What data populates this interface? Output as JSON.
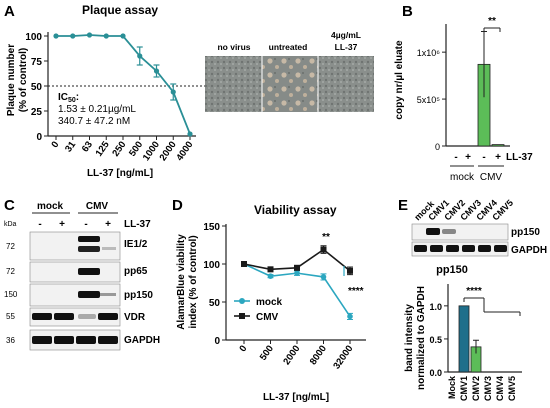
{
  "panel_letters": {
    "a": "A",
    "b": "B",
    "c": "C",
    "d": "D",
    "e": "E"
  },
  "panelA": {
    "title": "Plaque assay",
    "ylabel_line1": "Plaque number",
    "ylabel_line2": "(% of control)",
    "xlabel": "LL-37 [ng/mL]",
    "ic50_label": "IC50:",
    "ic50_line1": "1.53 ± 0.21µg/mL",
    "ic50_line2": "340.7 ± 47.2 nM",
    "image_labels": [
      "no virus",
      "untreated",
      "4µg/mL LL-37"
    ],
    "color": "#2a8f96"
  },
  "panelB": {
    "ylabel": "copy nr/µl eluate",
    "significance": "**",
    "ll37_label": "LL-37",
    "group_labels": [
      "mock",
      "CMV"
    ],
    "treatment_marks": [
      "-",
      "+",
      "-",
      "+"
    ],
    "color": "#5cbd58"
  },
  "panelC": {
    "kda_label": "kDa",
    "group_labels": [
      "mock",
      "CMV"
    ],
    "ll37_label": "LL-37",
    "treatment_marks": [
      "-",
      "+",
      "-",
      "+"
    ],
    "markers": [
      "72",
      "72",
      "150",
      "55",
      "36"
    ],
    "bands": [
      "IE1/2",
      "pp65",
      "pp150",
      "VDR",
      "GAPDH"
    ]
  },
  "panelD": {
    "title": "Viability assay",
    "ylabel_line1": "AlamarBlue viability",
    "ylabel_line2": "index (% of control)",
    "xlabel": "LL-37 [ng/mL]",
    "sig_top": "**",
    "sig_bottom": "****",
    "colors": {
      "mock": "#2ca7c0",
      "cmv": "#1a1a1a"
    }
  },
  "panelE": {
    "blot_lanes": [
      "mock",
      "CMV1",
      "CMV2",
      "CMV3",
      "CMV4",
      "CMV5"
    ],
    "blot_bands": [
      "pp150",
      "GAPDH"
    ],
    "bar_title": "pp150",
    "ylabel_line1": "band intensity",
    "ylabel_line2": "normalized to GAPDH",
    "significance": "****"
  },
  "chart_data": [
    {
      "type": "line",
      "panel": "A",
      "title": "Plaque assay",
      "xlabel": "LL-37 [ng/mL]",
      "ylabel": "Plaque number (% of control)",
      "categories": [
        "0",
        "31",
        "63",
        "125",
        "250",
        "500",
        "1000",
        "2000",
        "4000"
      ],
      "values": [
        100,
        100,
        101,
        100,
        100,
        80,
        65,
        44,
        2
      ],
      "errors": [
        0,
        0,
        0,
        0,
        0,
        9,
        6,
        8,
        0
      ],
      "ylim": [
        0,
        100
      ],
      "yticks": [
        0,
        25,
        50,
        75,
        100
      ],
      "reference_line": 50
    },
    {
      "type": "bar",
      "panel": "B",
      "ylabel": "copy nr/µl eluate",
      "categories": [
        "mock -",
        "mock +",
        "CMV -",
        "CMV +"
      ],
      "values": [
        0,
        0,
        870000,
        15000
      ],
      "errors": [
        0,
        0,
        350000,
        0
      ],
      "ylim": [
        0,
        1300000
      ],
      "yticks": [
        0,
        500000,
        1000000
      ],
      "ytick_labels": [
        "0",
        "5x10⁵",
        "1x10⁶"
      ]
    },
    {
      "type": "line",
      "panel": "D",
      "title": "Viability assay",
      "xlabel": "LL-37 [ng/mL]",
      "ylabel": "AlamarBlue viability index (% of control)",
      "categories": [
        "0",
        "500",
        "2000",
        "8000",
        "32000"
      ],
      "series": [
        {
          "name": "mock",
          "values": [
            100,
            84,
            88,
            83,
            31
          ],
          "errors": [
            0,
            2,
            3,
            4,
            4
          ]
        },
        {
          "name": "CMV",
          "values": [
            100,
            93,
            95,
            119,
            91
          ],
          "errors": [
            0,
            3,
            3,
            5,
            5
          ]
        }
      ],
      "ylim": [
        0,
        150
      ],
      "yticks": [
        0,
        50,
        100,
        150
      ]
    },
    {
      "type": "bar",
      "panel": "E",
      "title": "pp150",
      "ylabel": "band intensity normalized to GAPDH",
      "categories": [
        "Mock",
        "CMV1",
        "CMV2",
        "CMV3",
        "CMV4",
        "CMV5"
      ],
      "values": [
        0,
        1.0,
        0.38,
        0,
        0,
        0
      ],
      "errors": [
        0,
        0,
        0.1,
        0,
        0,
        0
      ],
      "ylim": [
        0,
        1.3
      ],
      "yticks": [
        0,
        0.5,
        1.0
      ],
      "ytick_labels": [
        "0.0",
        "0.5",
        "1.0"
      ]
    }
  ]
}
